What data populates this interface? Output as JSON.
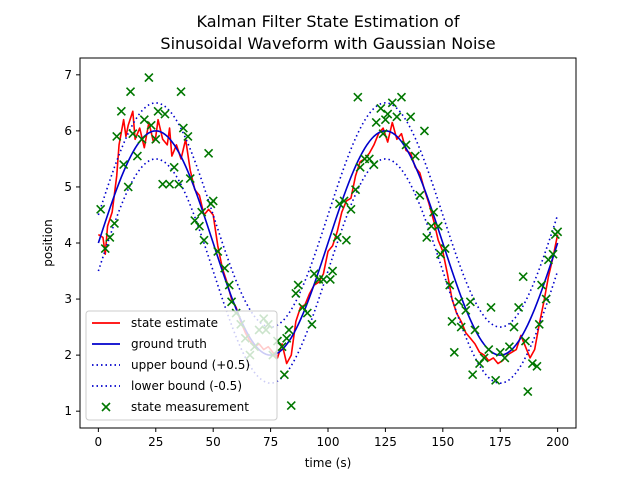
{
  "chart_data": {
    "type": "line",
    "title_lines": [
      "Kalman Filter State Estimation of",
      "Sinusoidal Waveform with Gaussian Noise"
    ],
    "xlabel": "time (s)",
    "ylabel": "position",
    "xlim": [
      -8,
      208
    ],
    "ylim": [
      0.7,
      7.3
    ],
    "xticks": [
      0,
      25,
      50,
      75,
      100,
      125,
      150,
      175,
      200
    ],
    "yticks": [
      1,
      2,
      3,
      4,
      5,
      6,
      7
    ],
    "grid": false,
    "legend_position": "lower-left",
    "ground_truth": {
      "amplitude": 2,
      "offset": 4,
      "period": 100,
      "phase_shift": 0
    },
    "bounds": {
      "upper": 0.5,
      "lower": -0.5
    },
    "series": [
      {
        "name": "state estimate",
        "color": "#ff0000",
        "style": "solid"
      },
      {
        "name": "ground truth",
        "color": "#0000cc",
        "style": "solid"
      },
      {
        "name": "upper bound (+0.5)",
        "color": "#0000cc",
        "style": "dotted"
      },
      {
        "name": "lower bound (-0.5)",
        "color": "#0000cc",
        "style": "dotted"
      },
      {
        "name": "state measurement",
        "color": "#007700",
        "style": "x-marker"
      }
    ],
    "measurements": [
      [
        1,
        4.6
      ],
      [
        3,
        3.9
      ],
      [
        5,
        4.1
      ],
      [
        7,
        4.35
      ],
      [
        8,
        5.9
      ],
      [
        10,
        6.35
      ],
      [
        11,
        5.4
      ],
      [
        13,
        5.0
      ],
      [
        14,
        6.7
      ],
      [
        15,
        5.95
      ],
      [
        17,
        5.55
      ],
      [
        19,
        5.85
      ],
      [
        20,
        6.2
      ],
      [
        22,
        6.95
      ],
      [
        23,
        6.1
      ],
      [
        25,
        5.85
      ],
      [
        26,
        6.35
      ],
      [
        28,
        5.05
      ],
      [
        29,
        6.3
      ],
      [
        31,
        5.05
      ],
      [
        33,
        5.35
      ],
      [
        35,
        5.05
      ],
      [
        36,
        6.7
      ],
      [
        37,
        6.05
      ],
      [
        39,
        5.9
      ],
      [
        40,
        5.15
      ],
      [
        42,
        4.4
      ],
      [
        44,
        4.3
      ],
      [
        45,
        4.55
      ],
      [
        46,
        4.05
      ],
      [
        48,
        5.6
      ],
      [
        49,
        4.7
      ],
      [
        50,
        4.75
      ],
      [
        52,
        3.85
      ],
      [
        55,
        3.55
      ],
      [
        57,
        3.25
      ],
      [
        58,
        2.95
      ],
      [
        60,
        2.75
      ],
      [
        62,
        2.55
      ],
      [
        64,
        2.3
      ],
      [
        66,
        2.0
      ],
      [
        68,
        2.15
      ],
      [
        70,
        2.45
      ],
      [
        72,
        2.65
      ],
      [
        73,
        2.45
      ],
      [
        74,
        2.55
      ],
      [
        76,
        2.0
      ],
      [
        78,
        2.25
      ],
      [
        80,
        2.15
      ],
      [
        81,
        1.65
      ],
      [
        82,
        2.3
      ],
      [
        83,
        2.45
      ],
      [
        84,
        1.1
      ],
      [
        86,
        3.1
      ],
      [
        87,
        3.25
      ],
      [
        89,
        2.85
      ],
      [
        91,
        2.75
      ],
      [
        93,
        2.55
      ],
      [
        94,
        3.45
      ],
      [
        96,
        3.35
      ],
      [
        98,
        3.35
      ],
      [
        101,
        3.35
      ],
      [
        102,
        3.5
      ],
      [
        104,
        4.1
      ],
      [
        105,
        4.7
      ],
      [
        107,
        4.75
      ],
      [
        108,
        4.05
      ],
      [
        110,
        4.6
      ],
      [
        112,
        4.95
      ],
      [
        113,
        6.6
      ],
      [
        114,
        5.35
      ],
      [
        116,
        5.5
      ],
      [
        118,
        5.5
      ],
      [
        120,
        5.4
      ],
      [
        121,
        6.15
      ],
      [
        123,
        6.4
      ],
      [
        124,
        5.95
      ],
      [
        125,
        6.2
      ],
      [
        126,
        6.3
      ],
      [
        128,
        6.5
      ],
      [
        130,
        6.25
      ],
      [
        132,
        6.6
      ],
      [
        134,
        5.75
      ],
      [
        136,
        6.25
      ],
      [
        138,
        5.55
      ],
      [
        140,
        4.85
      ],
      [
        142,
        6.0
      ],
      [
        143,
        4.1
      ],
      [
        145,
        4.3
      ],
      [
        146,
        4.55
      ],
      [
        148,
        4.3
      ],
      [
        149,
        3.8
      ],
      [
        151,
        3.9
      ],
      [
        153,
        3.25
      ],
      [
        154,
        2.6
      ],
      [
        155,
        2.05
      ],
      [
        157,
        2.95
      ],
      [
        158,
        2.5
      ],
      [
        160,
        2.8
      ],
      [
        162,
        2.95
      ],
      [
        163,
        1.65
      ],
      [
        164,
        2.45
      ],
      [
        166,
        1.85
      ],
      [
        168,
        1.95
      ],
      [
        170,
        2.1
      ],
      [
        171,
        2.85
      ],
      [
        173,
        1.55
      ],
      [
        175,
        2.05
      ],
      [
        177,
        1.95
      ],
      [
        179,
        2.15
      ],
      [
        181,
        2.5
      ],
      [
        183,
        2.85
      ],
      [
        185,
        3.4
      ],
      [
        186,
        2.25
      ],
      [
        187,
        1.35
      ],
      [
        189,
        1.85
      ],
      [
        191,
        1.8
      ],
      [
        192,
        2.55
      ],
      [
        193,
        3.25
      ],
      [
        195,
        3.0
      ],
      [
        196,
        3.7
      ],
      [
        198,
        3.8
      ],
      [
        199,
        4.15
      ],
      [
        200,
        4.2
      ]
    ],
    "state_estimate": [
      [
        0,
        4.15
      ],
      [
        2,
        4.1
      ],
      [
        3,
        3.8
      ],
      [
        4,
        4.3
      ],
      [
        6,
        4.55
      ],
      [
        8,
        5.2
      ],
      [
        9,
        5.75
      ],
      [
        11,
        6.2
      ],
      [
        12,
        5.9
      ],
      [
        13,
        6.1
      ],
      [
        15,
        6.35
      ],
      [
        16,
        5.85
      ],
      [
        18,
        6.05
      ],
      [
        20,
        5.7
      ],
      [
        22,
        6.15
      ],
      [
        24,
        5.8
      ],
      [
        25,
        5.9
      ],
      [
        26,
        6.2
      ],
      [
        28,
        5.85
      ],
      [
        30,
        5.75
      ],
      [
        31,
        6.05
      ],
      [
        32,
        5.55
      ],
      [
        34,
        5.75
      ],
      [
        36,
        5.5
      ],
      [
        38,
        5.85
      ],
      [
        40,
        5.3
      ],
      [
        42,
        4.95
      ],
      [
        44,
        4.85
      ],
      [
        46,
        4.5
      ],
      [
        48,
        4.6
      ],
      [
        50,
        4.5
      ],
      [
        52,
        3.95
      ],
      [
        54,
        3.55
      ],
      [
        56,
        3.3
      ],
      [
        58,
        3.0
      ],
      [
        60,
        2.85
      ],
      [
        62,
        2.6
      ],
      [
        64,
        2.4
      ],
      [
        66,
        2.25
      ],
      [
        68,
        2.15
      ],
      [
        70,
        2.2
      ],
      [
        72,
        2.1
      ],
      [
        74,
        2.15
      ],
      [
        76,
        2.05
      ],
      [
        78,
        1.95
      ],
      [
        80,
        2.2
      ],
      [
        82,
        1.85
      ],
      [
        84,
        2.0
      ],
      [
        86,
        2.6
      ],
      [
        88,
        2.85
      ],
      [
        90,
        2.9
      ],
      [
        92,
        3.1
      ],
      [
        94,
        3.25
      ],
      [
        96,
        3.3
      ],
      [
        98,
        3.45
      ],
      [
        100,
        3.85
      ],
      [
        102,
        3.95
      ],
      [
        104,
        4.2
      ],
      [
        106,
        4.55
      ],
      [
        108,
        4.75
      ],
      [
        110,
        4.8
      ],
      [
        112,
        5.2
      ],
      [
        114,
        5.45
      ],
      [
        116,
        5.5
      ],
      [
        118,
        5.6
      ],
      [
        120,
        5.75
      ],
      [
        122,
        5.95
      ],
      [
        124,
        6.05
      ],
      [
        126,
        5.8
      ],
      [
        128,
        6.15
      ],
      [
        130,
        5.85
      ],
      [
        132,
        5.95
      ],
      [
        134,
        5.65
      ],
      [
        136,
        5.6
      ],
      [
        138,
        5.35
      ],
      [
        140,
        5.25
      ],
      [
        142,
        4.95
      ],
      [
        144,
        4.7
      ],
      [
        146,
        4.4
      ],
      [
        148,
        4.05
      ],
      [
        150,
        3.85
      ],
      [
        152,
        3.45
      ],
      [
        154,
        3.0
      ],
      [
        156,
        2.75
      ],
      [
        158,
        2.6
      ],
      [
        160,
        2.4
      ],
      [
        162,
        2.3
      ],
      [
        164,
        2.2
      ],
      [
        166,
        2.05
      ],
      [
        168,
        2.0
      ],
      [
        170,
        1.9
      ],
      [
        172,
        1.95
      ],
      [
        174,
        1.85
      ],
      [
        176,
        1.9
      ],
      [
        178,
        2.0
      ],
      [
        180,
        2.05
      ],
      [
        182,
        2.1
      ],
      [
        184,
        2.35
      ],
      [
        186,
        2.15
      ],
      [
        188,
        1.95
      ],
      [
        190,
        2.1
      ],
      [
        192,
        2.55
      ],
      [
        194,
        2.95
      ],
      [
        196,
        3.4
      ],
      [
        198,
        3.75
      ],
      [
        200,
        4.15
      ]
    ]
  }
}
